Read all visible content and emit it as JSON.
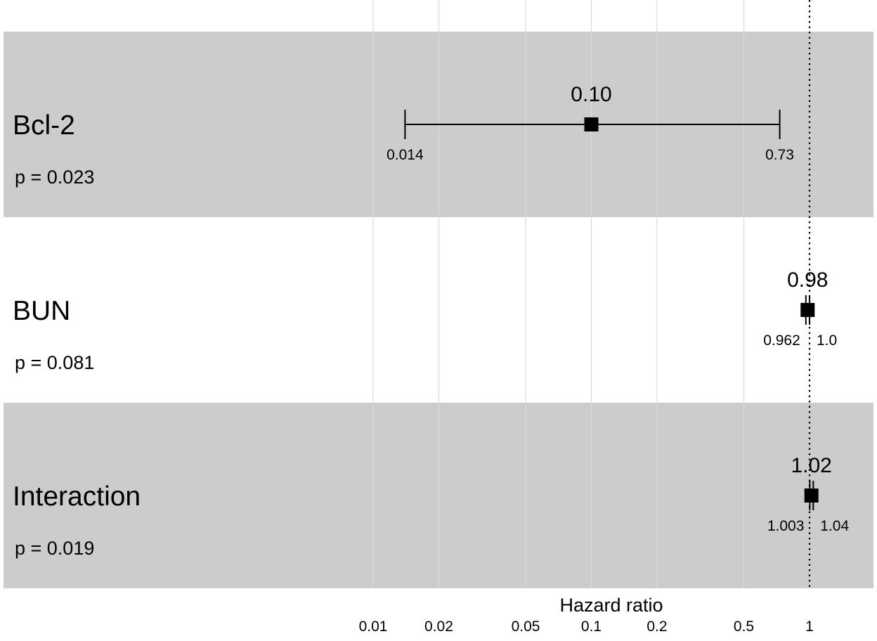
{
  "chart_data": {
    "type": "forest",
    "title": "",
    "xlabel": "Hazard ratio",
    "x_scale": "log",
    "xlim": [
      0.0067,
      2.1
    ],
    "ticks": [
      {
        "value": 0.01,
        "label": "0.01"
      },
      {
        "value": 0.02,
        "label": "0.02"
      },
      {
        "value": 0.05,
        "label": "0.05"
      },
      {
        "value": 0.1,
        "label": "0.1"
      },
      {
        "value": 0.2,
        "label": "0.2"
      },
      {
        "value": 0.5,
        "label": "0.5"
      },
      {
        "value": 1,
        "label": "1"
      }
    ],
    "reference_line": 1,
    "grid": true,
    "rows": [
      {
        "name": "Bcl-2",
        "p_text": "p = 0.023",
        "estimate": 0.1,
        "estimate_label": "0.10",
        "lower": 0.014,
        "lower_label": "0.014",
        "upper": 0.73,
        "upper_label": "0.73",
        "shaded": true
      },
      {
        "name": "BUN",
        "p_text": "p = 0.081",
        "estimate": 0.98,
        "estimate_label": "0.98",
        "lower": 0.962,
        "lower_label": "0.962",
        "upper": 1.0,
        "upper_label": "1.0",
        "shaded": false
      },
      {
        "name": "Interaction",
        "p_text": "p = 0.019",
        "estimate": 1.02,
        "estimate_label": "1.02",
        "lower": 1.003,
        "lower_label": "1.003",
        "upper": 1.04,
        "upper_label": "1.04",
        "shaded": true
      }
    ]
  },
  "colors": {
    "band": "#cccccc",
    "grid": "#d9d9d9",
    "ink": "#000000"
  }
}
